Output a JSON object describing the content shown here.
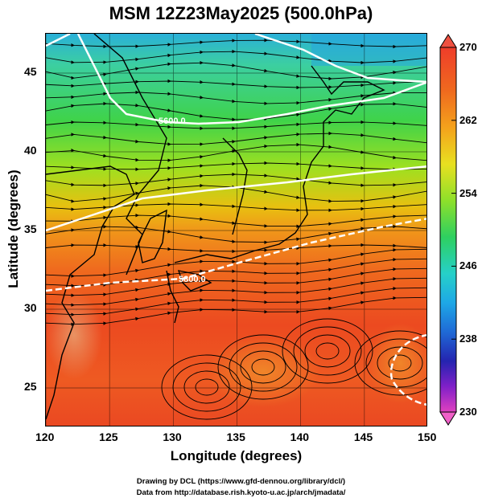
{
  "title": "MSM 12Z23May2025 (500.0hPa)",
  "x_axis": {
    "label": "Longitude (degrees)",
    "ticks": [
      "120",
      "125",
      "130",
      "135",
      "140",
      "145",
      "150"
    ]
  },
  "y_axis": {
    "label": "Latitude  (degrees)",
    "ticks": [
      "45",
      "40",
      "35",
      "30",
      "25"
    ]
  },
  "contour_labels": [
    "5600.0",
    "5800.0"
  ],
  "colorbar": {
    "ticks": [
      "270",
      "262",
      "254",
      "246",
      "238",
      "230"
    ],
    "range": [
      230,
      270
    ]
  },
  "credits": {
    "line1": "Drawing by DCL (https://www.gfd-dennou.org/library/dcl/)",
    "line2": "Data from http://database.rish.kyoto-u.ac.jp/arch/jmadata/"
  },
  "map_data": {
    "type": "temperature shading with streamlines and geopotential height contours",
    "lon_range": [
      120,
      150
    ],
    "lat_range": [
      22.5,
      47.5
    ],
    "variable": "temperature (K)",
    "contours": [
      5600.0,
      5800.0
    ]
  }
}
